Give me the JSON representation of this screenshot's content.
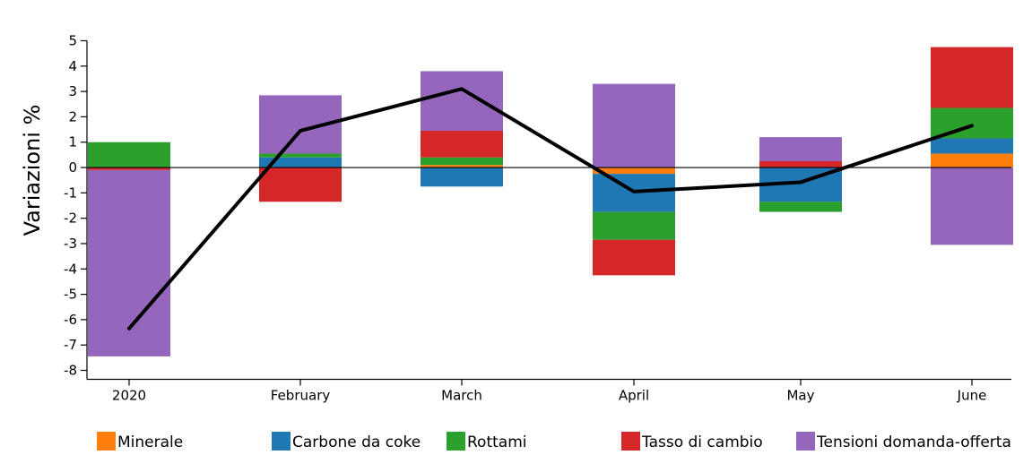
{
  "chart_data": {
    "type": "bar",
    "stacked": true,
    "categories": [
      "2020",
      "February",
      "March",
      "April",
      "May",
      "June"
    ],
    "ylabel": "Variazioni %",
    "xlabel": "",
    "ylim": [
      -8,
      5
    ],
    "yticks": [
      5,
      4,
      3,
      2,
      1,
      0,
      -1,
      -2,
      -3,
      -4,
      -5,
      -6,
      -7,
      -8
    ],
    "grid": false,
    "legend_position": "bottom",
    "series": [
      {
        "name": "Minerale",
        "color": "#ff7f0e",
        "values": [
          0.0,
          0.0,
          0.1,
          -0.25,
          0.0,
          0.55
        ]
      },
      {
        "name": "Carbone da coke",
        "color": "#1f77b4",
        "values": [
          0.0,
          0.4,
          -0.75,
          -1.5,
          -1.35,
          0.6
        ]
      },
      {
        "name": "Rottami",
        "color": "#2ca02c",
        "values": [
          1.0,
          0.15,
          0.3,
          -1.1,
          -0.4,
          1.2
        ]
      },
      {
        "name": "Tasso di cambio",
        "color": "#d62728",
        "values": [
          -0.1,
          -1.35,
          1.05,
          -1.4,
          0.25,
          2.4
        ]
      },
      {
        "name": "Tensioni domanda-offerta",
        "color": "#9467bd",
        "values": [
          -7.35,
          2.3,
          2.35,
          3.3,
          0.95,
          -3.05
        ]
      }
    ],
    "line": {
      "color": "#000000",
      "values": [
        -6.35,
        1.45,
        3.1,
        -0.95,
        -0.58,
        1.65
      ]
    }
  }
}
